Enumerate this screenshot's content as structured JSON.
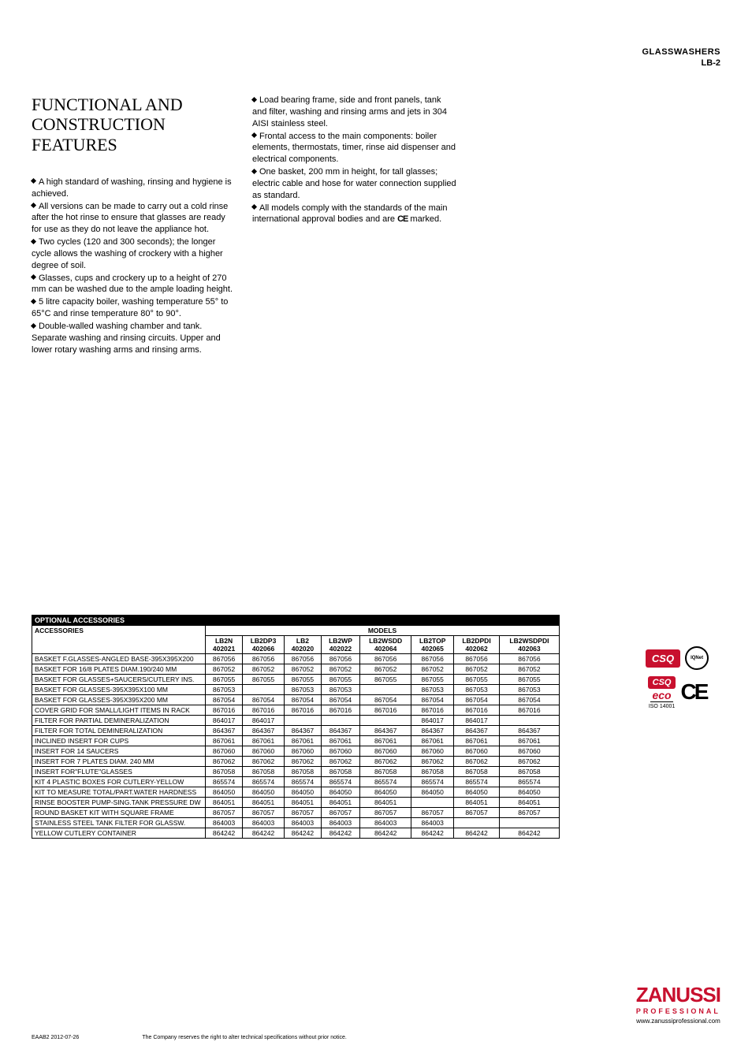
{
  "header": {
    "title": "GLASSWASHERS",
    "sub": "LB-2"
  },
  "section_title": "FUNCTIONAL AND CONSTRUCTION FEATURES",
  "col1_bullets": [
    "A high standard of washing, rinsing and hygiene is achieved.",
    "All versions can be made to carry out a cold rinse after the hot rinse to ensure that glasses are ready for use as they do not leave the appliance hot.",
    "Two cycles (120 and 300 seconds); the longer cycle allows the washing of crockery with a higher degree of soil.",
    "Glasses, cups and crockery up to a height of 270 mm can be washed due to the ample loading height.",
    "5 litre capacity boiler, washing temperature 55° to 65°C and rinse temperature 80° to 90°.",
    "Double-walled washing chamber and tank. Separate washing and rinsing circuits. Upper and lower rotary washing arms and rinsing arms."
  ],
  "col2_bullets": [
    "Load bearing frame, side and front panels, tank and filter, washing and rinsing arms and jets in 304 AISI stainless steel.",
    "Frontal access to the main components: boiler elements, thermostats, timer, rinse aid dispenser and electrical components.",
    "One basket, 200 mm in height, for tall glasses; electric cable and hose for water connection supplied as standard.",
    "All models comply with the standards of the main international approval bodies and are     marked."
  ],
  "ce_inline": "CE",
  "table": {
    "title": "OPTIONAL ACCESSORIES",
    "acc_header": "ACCESSORIES",
    "models_header": "MODELS",
    "models": [
      {
        "name": "LB2N",
        "code": "402021"
      },
      {
        "name": "LB2DP3",
        "code": "402066"
      },
      {
        "name": "LB2",
        "code": "402020"
      },
      {
        "name": "LB2WP",
        "code": "402022"
      },
      {
        "name": "LB2WSDD",
        "code": "402064"
      },
      {
        "name": "LB2TOP",
        "code": "402065"
      },
      {
        "name": "LB2DPDI",
        "code": "402062"
      },
      {
        "name": "LB2WSDPDI",
        "code": "402063"
      }
    ],
    "rows": [
      {
        "name": "BASKET F.GLASSES-ANGLED BASE-395X395X200",
        "vals": [
          "867056",
          "867056",
          "867056",
          "867056",
          "867056",
          "867056",
          "867056",
          "867056"
        ]
      },
      {
        "name": "BASKET FOR 16/8 PLATES DIAM.190/240 MM",
        "vals": [
          "867052",
          "867052",
          "867052",
          "867052",
          "867052",
          "867052",
          "867052",
          "867052"
        ]
      },
      {
        "name": "BASKET FOR GLASSES+SAUCERS/CUTLERY INS.",
        "vals": [
          "867055",
          "867055",
          "867055",
          "867055",
          "867055",
          "867055",
          "867055",
          "867055"
        ]
      },
      {
        "name": "BASKET FOR GLASSES-395X395X100 MM",
        "vals": [
          "867053",
          "",
          "867053",
          "867053",
          "",
          "867053",
          "867053",
          "867053"
        ]
      },
      {
        "name": "BASKET FOR GLASSES-395X395X200 MM",
        "vals": [
          "867054",
          "867054",
          "867054",
          "867054",
          "867054",
          "867054",
          "867054",
          "867054"
        ]
      },
      {
        "name": "COVER GRID FOR SMALL/LIGHT ITEMS IN RACK",
        "vals": [
          "867016",
          "867016",
          "867016",
          "867016",
          "867016",
          "867016",
          "867016",
          "867016"
        ]
      },
      {
        "name": "FILTER FOR PARTIAL DEMINERALIZATION",
        "vals": [
          "864017",
          "864017",
          "",
          "",
          "",
          "864017",
          "864017",
          ""
        ]
      },
      {
        "name": "FILTER FOR TOTAL DEMINERALIZATION",
        "vals": [
          "864367",
          "864367",
          "864367",
          "864367",
          "864367",
          "864367",
          "864367",
          "864367"
        ]
      },
      {
        "name": "INCLINED INSERT FOR CUPS",
        "vals": [
          "867061",
          "867061",
          "867061",
          "867061",
          "867061",
          "867061",
          "867061",
          "867061"
        ]
      },
      {
        "name": "INSERT FOR 14 SAUCERS",
        "vals": [
          "867060",
          "867060",
          "867060",
          "867060",
          "867060",
          "867060",
          "867060",
          "867060"
        ]
      },
      {
        "name": "INSERT FOR 7 PLATES DIAM. 240 MM",
        "vals": [
          "867062",
          "867062",
          "867062",
          "867062",
          "867062",
          "867062",
          "867062",
          "867062"
        ]
      },
      {
        "name": "INSERT FOR\"FLUTE\"GLASSES",
        "vals": [
          "867058",
          "867058",
          "867058",
          "867058",
          "867058",
          "867058",
          "867058",
          "867058"
        ]
      },
      {
        "name": "KIT 4 PLASTIC BOXES FOR CUTLERY-YELLOW",
        "vals": [
          "865574",
          "865574",
          "865574",
          "865574",
          "865574",
          "865574",
          "865574",
          "865574"
        ]
      },
      {
        "name": "KIT TO MEASURE TOTAL/PART.WATER HARDNESS",
        "vals": [
          "864050",
          "864050",
          "864050",
          "864050",
          "864050",
          "864050",
          "864050",
          "864050"
        ]
      },
      {
        "name": "RINSE BOOSTER PUMP-SING.TANK PRESSURE DW",
        "vals": [
          "864051",
          "864051",
          "864051",
          "864051",
          "864051",
          "",
          "864051",
          "864051"
        ]
      },
      {
        "name": "ROUND BASKET KIT WITH SQUARE FRAME",
        "vals": [
          "867057",
          "867057",
          "867057",
          "867057",
          "867057",
          "867057",
          "867057",
          "867057"
        ]
      },
      {
        "name": "STAINLESS STEEL TANK FILTER FOR GLASSW.",
        "vals": [
          "864003",
          "864003",
          "864003",
          "864003",
          "864003",
          "864003",
          "",
          ""
        ]
      },
      {
        "name": "YELLOW CUTLERY CONTAINER",
        "vals": [
          "864242",
          "864242",
          "864242",
          "864242",
          "864242",
          "864242",
          "864242",
          "864242"
        ]
      }
    ]
  },
  "badges": {
    "csq": "CSQ",
    "iqnet": "IQNet",
    "eco": "eco",
    "iso": "ISO 14001",
    "ce": "CE"
  },
  "logo": {
    "main": "ZANUSSI",
    "sub": "PROFESSIONAL",
    "url": "www.zanussiprofessional.com"
  },
  "footer": {
    "left": "EAAB2    2012-07-26",
    "right": "The Company reserves the right to alter technical specifications without prior notice."
  }
}
